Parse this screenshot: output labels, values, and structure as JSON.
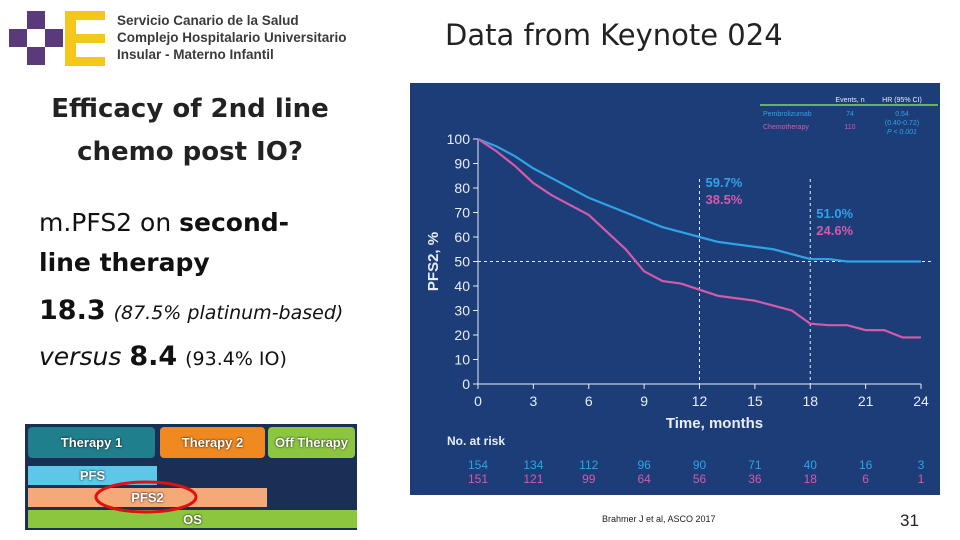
{
  "header": {
    "logo": [
      "Servicio Canario de la Salud",
      "Complejo Hospitalario Universitario",
      "Insular - Materno Infantil"
    ],
    "source": "Data from Keynote 024"
  },
  "slide": {
    "title": "Efficacy of 2nd line chemo post IO?",
    "subtitle": {
      "text": "m.PFS2 on",
      "bold": "second-line therapy"
    },
    "results": [
      {
        "value": 18.3,
        "note": "(87.5% platinum-based)"
      },
      {
        "prefix": "versus",
        "value": 8.4,
        "note": "(93.4% IO)"
      }
    ]
  },
  "diagram": {
    "phases": [
      "Therapy 1",
      "Therapy 2",
      "Off Therapy"
    ],
    "endpoints": [
      "PFS",
      "PFS2",
      "OS"
    ]
  },
  "footer": {
    "citation": "Brahmer J et al, ASCO 2017",
    "page": 31
  },
  "chart_data": {
    "type": "line",
    "x_label": "Time, months",
    "y_label": "PFS2, %",
    "x": [
      0,
      1,
      2,
      3,
      4,
      5,
      6,
      7,
      8,
      9,
      10,
      11,
      12,
      13,
      14,
      15,
      16,
      17,
      18,
      19,
      20,
      21,
      22,
      23,
      24
    ],
    "xlim": [
      0,
      24
    ],
    "xticks": [
      0,
      3,
      6,
      9,
      12,
      15,
      18,
      21,
      24
    ],
    "ylim": [
      0,
      100
    ],
    "yticks": [
      0,
      10,
      20,
      30,
      40,
      50,
      60,
      70,
      80,
      90,
      100
    ],
    "series": [
      {
        "name": "Pembrolizumab",
        "color": "#2ea3e6",
        "events": 74,
        "hr": "0.54",
        "ci": "(0.40-0.72)",
        "values": [
          100,
          97,
          93,
          88,
          84,
          80,
          76,
          73,
          70,
          67,
          64,
          62,
          60,
          58,
          57,
          56,
          55,
          53,
          51,
          51,
          50,
          50,
          50,
          50,
          50
        ]
      },
      {
        "name": "Chemotherapy",
        "color": "#d45aaa",
        "events": 110,
        "p": "P < 0.001",
        "values": [
          100,
          95,
          89,
          82,
          77,
          73,
          69,
          62,
          55,
          46,
          42,
          41,
          38.5,
          36,
          35,
          34,
          32,
          30,
          24.6,
          24,
          24,
          22,
          22,
          19,
          19
        ]
      }
    ],
    "legend_headers": [
      "Events, n",
      "HR (95% CI)"
    ],
    "annotations": [
      {
        "x": 12,
        "values": [
          59.7,
          38.5
        ],
        "labels": [
          "59.7%",
          "38.5%"
        ]
      },
      {
        "x": 18,
        "values": [
          51.0,
          24.6
        ],
        "labels": [
          "51.0%",
          "24.6%"
        ]
      }
    ],
    "reference_y": 50,
    "at_risk": {
      "title": "No. at risk",
      "rows": [
        [
          154,
          134,
          112,
          96,
          90,
          71,
          40,
          16,
          3
        ],
        [
          151,
          121,
          99,
          64,
          56,
          36,
          18,
          6,
          1
        ]
      ]
    }
  }
}
